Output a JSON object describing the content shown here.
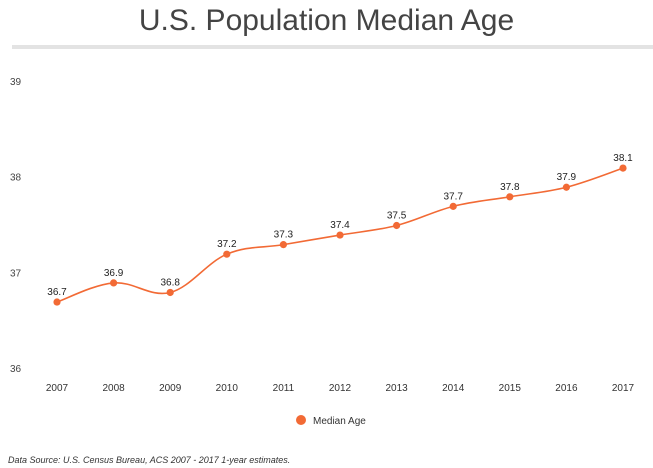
{
  "chart_data": {
    "type": "line",
    "title": "U.S. Population Median Age",
    "xlabel": "",
    "ylabel": "",
    "categories": [
      "2007",
      "2008",
      "2009",
      "2010",
      "2011",
      "2012",
      "2013",
      "2014",
      "2015",
      "2016",
      "2017"
    ],
    "series": [
      {
        "name": "Median Age",
        "values": [
          36.7,
          36.9,
          36.8,
          37.2,
          37.3,
          37.4,
          37.5,
          37.7,
          37.8,
          37.9,
          38.1
        ],
        "labels": [
          "36.7",
          "36.9",
          "36.8",
          "37.2",
          "37.3",
          "37.4",
          "37.5",
          "37.7",
          "37.8",
          "37.9",
          "38.1"
        ],
        "color": "#f26a35"
      }
    ],
    "ylim": [
      36,
      39
    ],
    "yticks": [
      "36",
      "37",
      "38",
      "39"
    ],
    "grid": false,
    "legend": "bottom-center",
    "source": "Data Source: U.S. Census Bureau, ACS 2007 - 2017 1-year estimates."
  }
}
